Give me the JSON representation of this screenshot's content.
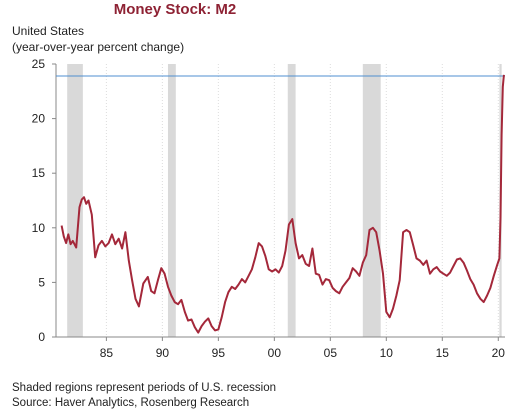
{
  "header": {
    "title": "Money Stock: M2",
    "subtitle_line1": "United States",
    "subtitle_line2": "(year-over-year percent change)"
  },
  "footer": {
    "note": "Shaded regions represent periods of U.S. recession",
    "source": "Source: Haver Analytics, Rosenberg Research"
  },
  "colors": {
    "series": "#a4283a",
    "reference_line": "#4f8fd0",
    "recession": "#d9d9d9",
    "axis": "#888888",
    "grid": "#dddddd"
  },
  "chart_data": {
    "type": "line",
    "title": "Money Stock: M2",
    "subtitle": "United States (year-over-year percent change)",
    "xlabel": "",
    "ylabel": "",
    "xlim": [
      1980.5,
      2020.6
    ],
    "ylim": [
      0,
      25
    ],
    "x_ticks": [
      1985,
      1990,
      1995,
      2000,
      2005,
      2010,
      2015,
      2020
    ],
    "x_tick_labels": [
      "85",
      "90",
      "95",
      "00",
      "05",
      "10",
      "15",
      "20"
    ],
    "y_ticks": [
      0,
      5,
      10,
      15,
      20,
      25
    ],
    "y_tick_labels": [
      "0",
      "5",
      "10",
      "15",
      "20",
      "25"
    ],
    "grid": "vertical dotted",
    "reference_line": {
      "y": 23.9,
      "label": ""
    },
    "recessions": [
      {
        "start": 1980.0,
        "end": 1980.5
      },
      {
        "start": 1981.5,
        "end": 1982.9
      },
      {
        "start": 1990.5,
        "end": 1991.2
      },
      {
        "start": 2001.2,
        "end": 2001.9
      },
      {
        "start": 2007.9,
        "end": 2009.5
      },
      {
        "start": 2020.1,
        "end": 2020.3
      }
    ],
    "series": [
      {
        "name": "",
        "x": [
          1981.0,
          1981.2,
          1981.4,
          1981.6,
          1981.8,
          1982.0,
          1982.3,
          1982.6,
          1982.8,
          1983.0,
          1983.2,
          1983.4,
          1983.7,
          1984.0,
          1984.3,
          1984.6,
          1984.9,
          1985.2,
          1985.5,
          1985.8,
          1986.1,
          1986.4,
          1986.7,
          1987.0,
          1987.3,
          1987.6,
          1987.9,
          1988.3,
          1988.7,
          1989.0,
          1989.3,
          1989.6,
          1989.9,
          1990.2,
          1990.5,
          1990.8,
          1991.1,
          1991.4,
          1991.7,
          1992.0,
          1992.3,
          1992.6,
          1992.9,
          1993.2,
          1993.5,
          1993.8,
          1994.1,
          1994.4,
          1994.7,
          1995.0,
          1995.3,
          1995.6,
          1995.9,
          1996.2,
          1996.5,
          1996.8,
          1997.1,
          1997.4,
          1997.7,
          1998.0,
          1998.3,
          1998.6,
          1998.9,
          1999.2,
          1999.5,
          1999.8,
          2000.1,
          2000.4,
          2000.7,
          2001.0,
          2001.3,
          2001.6,
          2001.9,
          2002.2,
          2002.5,
          2002.8,
          2003.1,
          2003.4,
          2003.7,
          2004.0,
          2004.3,
          2004.6,
          2004.9,
          2005.2,
          2005.5,
          2005.8,
          2006.1,
          2006.4,
          2006.7,
          2007.0,
          2007.3,
          2007.6,
          2007.9,
          2008.2,
          2008.5,
          2008.8,
          2009.1,
          2009.4,
          2009.7,
          2010.0,
          2010.3,
          2010.6,
          2010.9,
          2011.2,
          2011.5,
          2011.8,
          2012.1,
          2012.4,
          2012.7,
          2013.0,
          2013.3,
          2013.6,
          2013.9,
          2014.2,
          2014.5,
          2014.8,
          2015.1,
          2015.4,
          2015.7,
          2016.0,
          2016.3,
          2016.6,
          2016.9,
          2017.2,
          2017.5,
          2017.8,
          2018.1,
          2018.4,
          2018.7,
          2019.0,
          2019.3,
          2019.6,
          2019.9,
          2020.1,
          2020.2,
          2020.3,
          2020.4,
          2020.5
        ],
        "values": [
          10.2,
          9.2,
          8.6,
          9.4,
          8.5,
          8.8,
          8.2,
          11.9,
          12.6,
          12.8,
          12.2,
          12.5,
          11.2,
          7.3,
          8.4,
          8.8,
          8.3,
          8.6,
          9.4,
          8.5,
          9.0,
          8.1,
          9.6,
          7.0,
          5.2,
          3.5,
          2.8,
          4.9,
          5.5,
          4.2,
          4.0,
          5.2,
          6.3,
          5.8,
          4.6,
          3.8,
          3.2,
          3.0,
          3.4,
          2.3,
          1.5,
          1.6,
          0.9,
          0.4,
          1.0,
          1.4,
          1.7,
          1.0,
          0.6,
          0.7,
          1.8,
          3.2,
          4.1,
          4.6,
          4.4,
          4.8,
          5.3,
          5.0,
          5.6,
          6.2,
          7.3,
          8.6,
          8.3,
          7.4,
          6.2,
          6.0,
          6.2,
          5.9,
          6.5,
          7.9,
          10.3,
          10.8,
          8.6,
          7.2,
          7.5,
          6.7,
          6.5,
          8.1,
          5.8,
          5.7,
          4.8,
          5.3,
          5.2,
          4.5,
          4.2,
          4.0,
          4.6,
          5.0,
          5.4,
          6.3,
          6.0,
          5.6,
          6.8,
          7.5,
          9.8,
          10.0,
          9.6,
          7.9,
          5.8,
          2.3,
          1.8,
          2.6,
          3.8,
          5.2,
          9.6,
          9.8,
          9.6,
          8.4,
          7.2,
          7.0,
          6.6,
          7.0,
          5.8,
          6.2,
          6.4,
          6.0,
          5.8,
          5.6,
          5.9,
          6.5,
          7.1,
          7.2,
          6.8,
          6.1,
          5.3,
          4.8,
          4.0,
          3.5,
          3.2,
          3.8,
          4.5,
          5.6,
          6.6,
          7.2,
          10.9,
          18.5,
          22.9,
          24.0
        ]
      }
    ]
  }
}
